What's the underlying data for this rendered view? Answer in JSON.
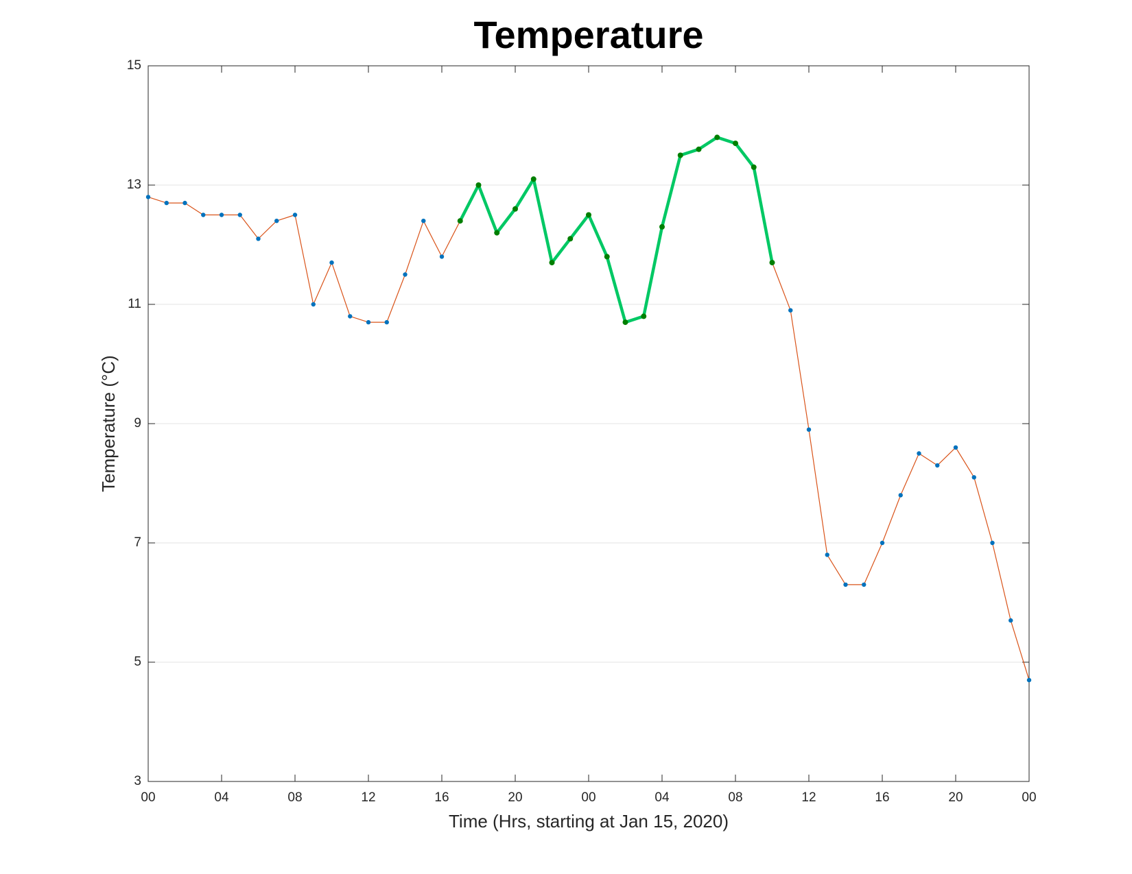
{
  "chart_data": {
    "type": "line",
    "title": "Temperature",
    "xlabel": "Time (Hrs, starting at Jan 15, 2020)",
    "ylabel": "Temperature (°C)",
    "x": [
      0,
      1,
      2,
      3,
      4,
      5,
      6,
      7,
      8,
      9,
      10,
      11,
      12,
      13,
      14,
      15,
      16,
      17,
      18,
      19,
      20,
      21,
      22,
      23,
      24,
      25,
      26,
      27,
      28,
      29,
      30,
      31,
      32,
      33,
      34,
      35,
      36,
      37,
      38,
      39,
      40,
      41,
      42,
      43,
      44,
      45,
      46,
      47,
      48
    ],
    "series": [
      {
        "color": "#d95319",
        "marker_color": "#0072bd",
        "line_width": 1.2,
        "marker_size": 3.2,
        "values": [
          12.8,
          12.7,
          12.7,
          12.5,
          12.5,
          12.5,
          12.1,
          12.4,
          12.5,
          11.0,
          11.7,
          10.8,
          10.7,
          10.7,
          11.5,
          12.4,
          11.8,
          12.4,
          13.0,
          12.2,
          12.6,
          13.1,
          11.7,
          12.1,
          12.5,
          11.8,
          10.7,
          10.8,
          12.3,
          13.5,
          13.6,
          13.8,
          13.7,
          13.3,
          11.7,
          10.9,
          8.9,
          6.8,
          6.3,
          6.3,
          7.0,
          7.8,
          8.5,
          8.3,
          8.6,
          8.1,
          7.0,
          5.7,
          4.7
        ]
      },
      {
        "color": "#00c864",
        "marker_color": "#007f00",
        "line_width": 4.5,
        "marker_size": 4,
        "values": [
          null,
          null,
          null,
          null,
          null,
          null,
          null,
          null,
          null,
          null,
          null,
          null,
          null,
          null,
          null,
          null,
          null,
          12.4,
          13.0,
          12.2,
          12.6,
          13.1,
          11.7,
          12.1,
          12.5,
          11.8,
          10.7,
          10.8,
          12.3,
          13.5,
          13.6,
          13.8,
          13.7,
          13.3,
          11.7,
          null,
          null,
          null,
          null,
          null,
          null,
          null,
          null,
          null,
          null,
          null,
          null,
          null,
          null
        ]
      }
    ],
    "xlim": [
      0,
      48
    ],
    "xticks": [
      {
        "value": 0,
        "label": "00"
      },
      {
        "value": 4,
        "label": "04"
      },
      {
        "value": 8,
        "label": "08"
      },
      {
        "value": 12,
        "label": "12"
      },
      {
        "value": 16,
        "label": "16"
      },
      {
        "value": 20,
        "label": "20"
      },
      {
        "value": 24,
        "label": "00"
      },
      {
        "value": 28,
        "label": "04"
      },
      {
        "value": 32,
        "label": "08"
      },
      {
        "value": 36,
        "label": "12"
      },
      {
        "value": 40,
        "label": "16"
      },
      {
        "value": 44,
        "label": "20"
      },
      {
        "value": 48,
        "label": "00"
      }
    ],
    "ylim": [
      3,
      15
    ],
    "yticks": [
      3,
      5,
      7,
      9,
      11,
      13,
      15
    ],
    "grid": "y"
  }
}
